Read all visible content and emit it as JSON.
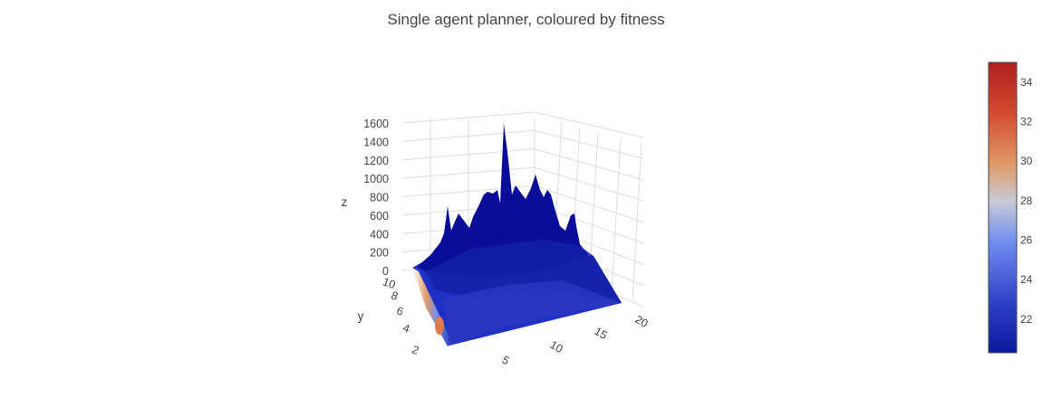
{
  "chart_data": {
    "type": "surface",
    "title": "Single agent planner, coloured by fitness",
    "x_axis": {
      "label": "",
      "ticks": [
        "5",
        "10",
        "15",
        "20"
      ],
      "range": [
        1,
        20
      ]
    },
    "y_axis": {
      "label": "y",
      "ticks": [
        "2",
        "4",
        "6",
        "8",
        "10"
      ],
      "range": [
        1,
        10
      ]
    },
    "z_axis": {
      "label": "z",
      "ticks": [
        "0",
        "200",
        "400",
        "600",
        "800",
        "1000",
        "1200",
        "1400",
        "1600"
      ],
      "range": [
        0,
        1650
      ]
    },
    "colorbar": {
      "ticks": [
        "22",
        "24",
        "26",
        "28",
        "30",
        "32",
        "34"
      ],
      "range": [
        20.3,
        35
      ],
      "colorscale": [
        "#0a1a9e",
        "#2c40c8",
        "#6f8df0",
        "#c7cbd6",
        "#e09a66",
        "#d2492e",
        "#b01f22"
      ]
    },
    "peaks": [
      {
        "x": 9,
        "y": 10,
        "z": 1600
      },
      {
        "x": 12,
        "y": 10,
        "z": 1050
      },
      {
        "x": 14,
        "y": 10,
        "z": 1000
      },
      {
        "x": 7,
        "y": 10,
        "z": 950
      },
      {
        "x": 10,
        "y": 10,
        "z": 900
      },
      {
        "x": 3,
        "y": 10,
        "z": 650
      },
      {
        "x": 15,
        "y": 10,
        "z": 700
      },
      {
        "x": 5,
        "y": 9,
        "z": 600
      }
    ],
    "grid": true,
    "legend": "colorbar-right"
  }
}
